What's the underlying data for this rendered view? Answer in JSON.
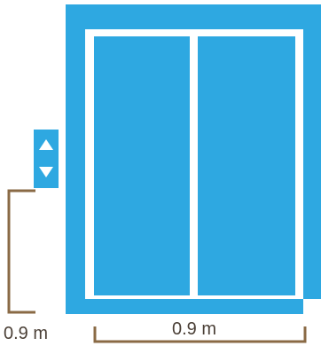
{
  "diagram": {
    "colors": {
      "elevator_blue": "#2ea8e1",
      "frame_white": "#ffffff",
      "dimension_brown": "#8a6a45",
      "text_dark": "#4a3f36"
    },
    "call_button": {
      "up_icon": "triangle-up-icon",
      "down_icon": "triangle-down-icon"
    },
    "dimensions": {
      "button_height_label": "0.9 m",
      "door_width_label": "0.9 m"
    }
  }
}
